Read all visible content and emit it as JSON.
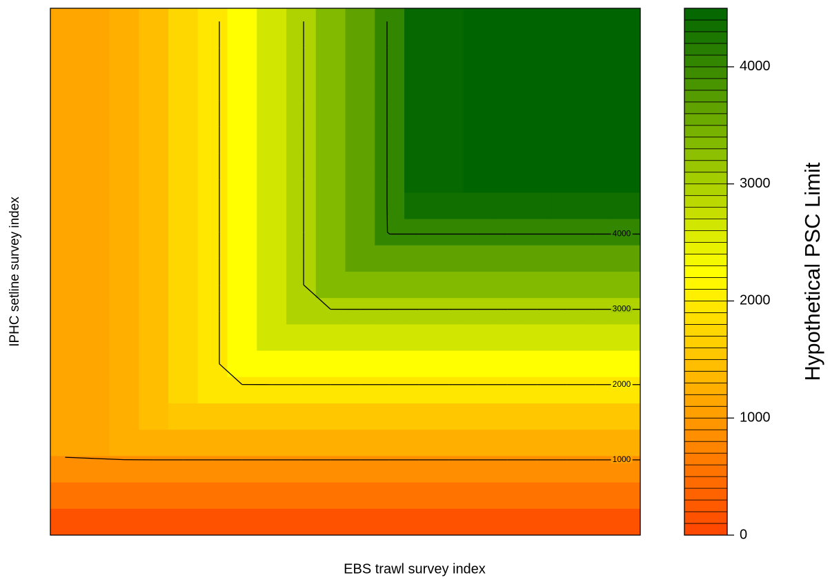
{
  "chart_data": {
    "type": "contour",
    "x_label": "EBS trawl survey index",
    "y_label": "IPHC setline survey index",
    "colorbar_title": "Hypothetical PSC Limit",
    "zlim": [
      0,
      4500
    ],
    "zticks": [
      0,
      1000,
      2000,
      3000,
      4000
    ],
    "band_width": 100,
    "palette": [
      "#ff4500",
      "#ffa500",
      "#ffff00",
      "#7fb800",
      "#006400"
    ],
    "contour_levels": [
      1000,
      2000,
      3000,
      4000
    ],
    "z": [
      [
        1150,
        1180,
        1220,
        1450,
        1700,
        1920,
        2270,
        2620,
        2970,
        3320,
        3680,
        4030,
        4400,
        4480,
        4500,
        4500,
        4500,
        4500,
        4500,
        4500
      ],
      [
        1150,
        1180,
        1220,
        1450,
        1700,
        1920,
        2270,
        2620,
        2970,
        3320,
        3680,
        4030,
        4400,
        4480,
        4500,
        4500,
        4500,
        4500,
        4500,
        4500
      ],
      [
        1150,
        1180,
        1220,
        1450,
        1700,
        1920,
        2270,
        2620,
        2970,
        3320,
        3680,
        4030,
        4400,
        4480,
        4500,
        4500,
        4500,
        4500,
        4500,
        4500
      ],
      [
        1150,
        1180,
        1220,
        1450,
        1700,
        1920,
        2270,
        2620,
        2970,
        3320,
        3680,
        4030,
        4400,
        4480,
        4500,
        4500,
        4500,
        4500,
        4500,
        4500
      ],
      [
        1150,
        1180,
        1220,
        1450,
        1700,
        1920,
        2270,
        2620,
        2970,
        3320,
        3680,
        4030,
        4400,
        4480,
        4500,
        4500,
        4500,
        4500,
        4500,
        4500
      ],
      [
        1150,
        1180,
        1220,
        1450,
        1700,
        1920,
        2270,
        2620,
        2970,
        3320,
        3680,
        4030,
        4400,
        4480,
        4500,
        4500,
        4500,
        4500,
        4500,
        4500
      ],
      [
        1150,
        1180,
        1220,
        1450,
        1700,
        1920,
        2270,
        2620,
        2970,
        3320,
        3680,
        4030,
        4400,
        4480,
        4500,
        4500,
        4500,
        4500,
        4500,
        4500
      ],
      [
        1150,
        1180,
        1220,
        1450,
        1700,
        1920,
        2270,
        2620,
        2970,
        3320,
        3680,
        4030,
        4375,
        4375,
        4375,
        4375,
        4375,
        4375,
        4375,
        4375
      ],
      [
        1150,
        1180,
        1220,
        1450,
        1700,
        1920,
        2270,
        2620,
        2970,
        3320,
        3680,
        4025,
        4025,
        4025,
        4025,
        4025,
        4025,
        4025,
        4025,
        4025
      ],
      [
        1150,
        1180,
        1220,
        1450,
        1700,
        1920,
        2270,
        2620,
        2970,
        3320,
        3675,
        3675,
        3675,
        3675,
        3675,
        3675,
        3675,
        3675,
        3675,
        3675
      ],
      [
        1150,
        1180,
        1220,
        1450,
        1700,
        1920,
        2270,
        2620,
        2970,
        3320,
        3325,
        3325,
        3325,
        3325,
        3325,
        3325,
        3325,
        3325,
        3325,
        3325
      ],
      [
        1150,
        1180,
        1220,
        1450,
        1700,
        1920,
        2270,
        2620,
        2970,
        2975,
        2975,
        2975,
        2975,
        2975,
        2975,
        2975,
        2975,
        2975,
        2975,
        2975
      ],
      [
        1150,
        1180,
        1220,
        1450,
        1700,
        1920,
        2270,
        2620,
        2625,
        2625,
        2625,
        2625,
        2625,
        2625,
        2625,
        2625,
        2625,
        2625,
        2625,
        2625
      ],
      [
        1150,
        1180,
        1220,
        1450,
        1700,
        1920,
        2270,
        2275,
        2275,
        2275,
        2275,
        2275,
        2275,
        2275,
        2275,
        2275,
        2275,
        2275,
        2275,
        2275
      ],
      [
        1150,
        1180,
        1220,
        1450,
        1700,
        1920,
        1925,
        1925,
        1925,
        1925,
        1925,
        1925,
        1925,
        1925,
        1925,
        1925,
        1925,
        1925,
        1925,
        1925
      ],
      [
        1150,
        1180,
        1220,
        1450,
        1575,
        1575,
        1575,
        1575,
        1575,
        1575,
        1575,
        1575,
        1575,
        1575,
        1575,
        1575,
        1575,
        1575,
        1575,
        1575
      ],
      [
        1150,
        1180,
        1220,
        1225,
        1225,
        1225,
        1225,
        1225,
        1225,
        1225,
        1225,
        1225,
        1225,
        1225,
        1225,
        1225,
        1225,
        1225,
        1225,
        1225
      ],
      [
        875,
        875,
        875,
        875,
        875,
        875,
        875,
        875,
        875,
        875,
        875,
        875,
        875,
        875,
        875,
        875,
        875,
        875,
        875,
        875
      ],
      [
        525,
        525,
        525,
        525,
        525,
        525,
        525,
        525,
        525,
        525,
        525,
        525,
        525,
        525,
        525,
        525,
        525,
        525,
        525,
        525
      ],
      [
        175,
        175,
        175,
        175,
        175,
        175,
        175,
        175,
        175,
        175,
        175,
        175,
        175,
        175,
        175,
        175,
        175,
        175,
        175,
        175
      ]
    ]
  }
}
